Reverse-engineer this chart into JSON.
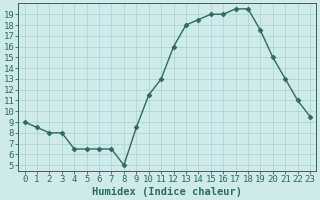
{
  "x": [
    0,
    1,
    2,
    3,
    4,
    5,
    6,
    7,
    8,
    9,
    10,
    11,
    12,
    13,
    14,
    15,
    16,
    17,
    18,
    19,
    20,
    21,
    22,
    23
  ],
  "y": [
    9,
    8.5,
    8,
    8,
    6.5,
    6.5,
    6.5,
    6.5,
    5,
    8.5,
    11.5,
    13,
    16,
    18,
    18.5,
    19,
    19,
    19.5,
    19.5,
    17.5,
    15,
    13,
    11,
    9.5
  ],
  "line_color": "#2e6b5e",
  "marker": "D",
  "marker_size": 2.5,
  "bg_color": "#ceeaea",
  "grid_color": "#afd4d4",
  "xlabel": "Humidex (Indice chaleur)",
  "xlim": [
    -0.5,
    23.5
  ],
  "ylim": [
    4.5,
    20
  ],
  "xticks": [
    0,
    1,
    2,
    3,
    4,
    5,
    6,
    7,
    8,
    9,
    10,
    11,
    12,
    13,
    14,
    15,
    16,
    17,
    18,
    19,
    20,
    21,
    22,
    23
  ],
  "yticks": [
    5,
    6,
    7,
    8,
    9,
    10,
    11,
    12,
    13,
    14,
    15,
    16,
    17,
    18,
    19
  ],
  "xlabel_fontsize": 7.5,
  "tick_fontsize": 6.5,
  "axis_color": "#2e6b5e",
  "line_width": 1.0
}
